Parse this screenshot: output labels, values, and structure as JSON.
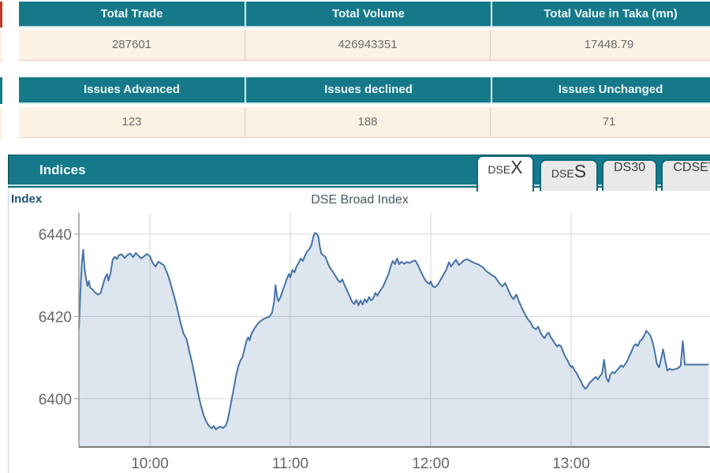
{
  "summary_table_1": {
    "headers": [
      "Total Trade",
      "Total Volume",
      "Total Value in Taka (mn)"
    ],
    "values": [
      "287601",
      "426943351",
      "17448.79"
    ]
  },
  "summary_table_2": {
    "headers": [
      "Issues Advanced",
      "Issues declined",
      "Issues Unchanged"
    ],
    "values": [
      "123",
      "188",
      "71"
    ]
  },
  "indices": {
    "title": "Indices",
    "tabs": [
      {
        "name": "DSEX",
        "small": "DSE",
        "big": "X",
        "mid": "",
        "active": true
      },
      {
        "name": "DSES",
        "small": "DSE",
        "big": "S",
        "mid": "",
        "active": false
      },
      {
        "name": "DS30",
        "small": "",
        "big": "",
        "mid": "DS30",
        "active": false
      },
      {
        "name": "CDSET",
        "small": "",
        "big": "",
        "mid": "CDSET",
        "active": false
      }
    ]
  },
  "colors": {
    "accent_teal": "#16798a",
    "header_text": "#edf8f9",
    "row_bg": "#fcf2e4",
    "row_border": "#f0cdb4",
    "red_accent": "#bf3a24",
    "chart_line": "#4572a7"
  },
  "chart_data": {
    "type": "area",
    "title": "DSE Broad Index",
    "y_axis_label": "Index",
    "grid": true,
    "legend": "none",
    "x_unit": "time of day (hours)",
    "x_range_hours": [
      9.495,
      13.99
    ],
    "y_range": [
      6388,
      6445
    ],
    "x_ticks": [
      {
        "t": 10,
        "label": "10:00"
      },
      {
        "t": 11,
        "label": "11:00"
      },
      {
        "t": 12,
        "label": "12:00"
      },
      {
        "t": 13,
        "label": "13:00"
      }
    ],
    "y_ticks": [
      {
        "v": 6400,
        "label": "6400"
      },
      {
        "v": 6420,
        "label": "6420"
      },
      {
        "v": 6440,
        "label": "6440"
      }
    ],
    "line_color": "#4572a7",
    "fill_color": "#4572a7",
    "fill_opacity": 0.18,
    "series": [
      {
        "name": "DSE Broad Index",
        "points": [
          [
            9.495,
            6417.0
          ],
          [
            9.505,
            6426.0
          ],
          [
            9.515,
            6433.0
          ],
          [
            9.525,
            6436.2
          ],
          [
            9.535,
            6431.5
          ],
          [
            9.545,
            6429.3
          ],
          [
            9.555,
            6427.4
          ],
          [
            9.565,
            6428.6
          ],
          [
            9.575,
            6427.0
          ],
          [
            9.59,
            6426.6
          ],
          [
            9.61,
            6425.8
          ],
          [
            9.63,
            6425.3
          ],
          [
            9.65,
            6425.7
          ],
          [
            9.665,
            6427.6
          ],
          [
            9.68,
            6429.3
          ],
          [
            9.695,
            6430.3
          ],
          [
            9.705,
            6428.7
          ],
          [
            9.72,
            6430.6
          ],
          [
            9.735,
            6433.8
          ],
          [
            9.75,
            6434.5
          ],
          [
            9.765,
            6433.9
          ],
          [
            9.78,
            6434.9
          ],
          [
            9.8,
            6435.1
          ],
          [
            9.82,
            6434.2
          ],
          [
            9.84,
            6434.9
          ],
          [
            9.86,
            6435.3
          ],
          [
            9.88,
            6434.4
          ],
          [
            9.9,
            6435.4
          ],
          [
            9.92,
            6434.7
          ],
          [
            9.94,
            6434.1
          ],
          [
            9.96,
            6434.7
          ],
          [
            9.98,
            6435.2
          ],
          [
            10.0,
            6434.6
          ],
          [
            10.02,
            6433.0
          ],
          [
            10.04,
            6432.1
          ],
          [
            10.06,
            6433.3
          ],
          [
            10.08,
            6432.9
          ],
          [
            10.1,
            6432.4
          ],
          [
            10.12,
            6430.8
          ],
          [
            10.14,
            6428.9
          ],
          [
            10.16,
            6426.4
          ],
          [
            10.18,
            6424.0
          ],
          [
            10.2,
            6421.2
          ],
          [
            10.22,
            6418.2
          ],
          [
            10.24,
            6415.8
          ],
          [
            10.26,
            6414.6
          ],
          [
            10.28,
            6411.7
          ],
          [
            10.3,
            6408.8
          ],
          [
            10.32,
            6405.4
          ],
          [
            10.34,
            6401.9
          ],
          [
            10.36,
            6398.8
          ],
          [
            10.38,
            6396.3
          ],
          [
            10.4,
            6394.5
          ],
          [
            10.42,
            6393.4
          ],
          [
            10.44,
            6392.8
          ],
          [
            10.455,
            6393.4
          ],
          [
            10.47,
            6392.5
          ],
          [
            10.485,
            6393.0
          ],
          [
            10.5,
            6393.2
          ],
          [
            10.52,
            6392.9
          ],
          [
            10.54,
            6393.4
          ],
          [
            10.555,
            6394.9
          ],
          [
            10.57,
            6397.6
          ],
          [
            10.585,
            6400.3
          ],
          [
            10.6,
            6403.0
          ],
          [
            10.615,
            6405.9
          ],
          [
            10.63,
            6407.9
          ],
          [
            10.645,
            6409.3
          ],
          [
            10.66,
            6410.2
          ],
          [
            10.675,
            6412.3
          ],
          [
            10.69,
            6414.3
          ],
          [
            10.7,
            6414.9
          ],
          [
            10.71,
            6414.2
          ],
          [
            10.725,
            6415.9
          ],
          [
            10.74,
            6416.8
          ],
          [
            10.755,
            6417.6
          ],
          [
            10.77,
            6418.3
          ],
          [
            10.79,
            6418.9
          ],
          [
            10.81,
            6419.4
          ],
          [
            10.83,
            6419.7
          ],
          [
            10.85,
            6419.9
          ],
          [
            10.87,
            6420.9
          ],
          [
            10.885,
            6423.6
          ],
          [
            10.895,
            6427.6
          ],
          [
            10.905,
            6424.9
          ],
          [
            10.915,
            6423.7
          ],
          [
            10.93,
            6424.7
          ],
          [
            10.945,
            6426.2
          ],
          [
            10.96,
            6427.6
          ],
          [
            10.975,
            6429.1
          ],
          [
            10.99,
            6430.3
          ],
          [
            11.0,
            6429.5
          ],
          [
            11.015,
            6431.3
          ],
          [
            11.03,
            6430.7
          ],
          [
            11.045,
            6432.2
          ],
          [
            11.06,
            6433.0
          ],
          [
            11.075,
            6434.1
          ],
          [
            11.09,
            6433.5
          ],
          [
            11.105,
            6434.8
          ],
          [
            11.12,
            6435.8
          ],
          [
            11.135,
            6436.3
          ],
          [
            11.15,
            6437.3
          ],
          [
            11.165,
            6439.5
          ],
          [
            11.175,
            6440.3
          ],
          [
            11.19,
            6440.0
          ],
          [
            11.2,
            6439.4
          ],
          [
            11.21,
            6437.0
          ],
          [
            11.22,
            6435.3
          ],
          [
            11.235,
            6434.8
          ],
          [
            11.25,
            6434.5
          ],
          [
            11.265,
            6433.1
          ],
          [
            11.28,
            6432.0
          ],
          [
            11.3,
            6431.0
          ],
          [
            11.32,
            6429.9
          ],
          [
            11.34,
            6428.8
          ],
          [
            11.355,
            6428.3
          ],
          [
            11.37,
            6429.0
          ],
          [
            11.385,
            6427.8
          ],
          [
            11.4,
            6426.6
          ],
          [
            11.42,
            6425.1
          ],
          [
            11.44,
            6423.6
          ],
          [
            11.455,
            6423.0
          ],
          [
            11.47,
            6424.0
          ],
          [
            11.485,
            6422.7
          ],
          [
            11.5,
            6423.9
          ],
          [
            11.515,
            6422.9
          ],
          [
            11.53,
            6424.2
          ],
          [
            11.545,
            6423.4
          ],
          [
            11.56,
            6424.7
          ],
          [
            11.575,
            6423.9
          ],
          [
            11.59,
            6424.3
          ],
          [
            11.605,
            6425.7
          ],
          [
            11.62,
            6425.1
          ],
          [
            11.64,
            6426.3
          ],
          [
            11.66,
            6427.2
          ],
          [
            11.68,
            6428.8
          ],
          [
            11.7,
            6430.3
          ],
          [
            11.715,
            6432.2
          ],
          [
            11.73,
            6433.5
          ],
          [
            11.745,
            6432.7
          ],
          [
            11.76,
            6434.1
          ],
          [
            11.775,
            6432.7
          ],
          [
            11.79,
            6433.3
          ],
          [
            11.81,
            6432.8
          ],
          [
            11.83,
            6433.2
          ],
          [
            11.85,
            6433.0
          ],
          [
            11.87,
            6433.4
          ],
          [
            11.89,
            6433.6
          ],
          [
            11.91,
            6432.4
          ],
          [
            11.93,
            6430.9
          ],
          [
            11.95,
            6429.5
          ],
          [
            11.97,
            6428.4
          ],
          [
            11.99,
            6427.9
          ],
          [
            12.0,
            6428.5
          ],
          [
            12.015,
            6427.3
          ],
          [
            12.03,
            6427.1
          ],
          [
            12.05,
            6427.7
          ],
          [
            12.07,
            6428.9
          ],
          [
            12.09,
            6430.1
          ],
          [
            12.11,
            6431.3
          ],
          [
            12.13,
            6433.2
          ],
          [
            12.145,
            6432.1
          ],
          [
            12.16,
            6432.9
          ],
          [
            12.18,
            6433.8
          ],
          [
            12.2,
            6432.5
          ],
          [
            12.22,
            6433.1
          ],
          [
            12.24,
            6433.7
          ],
          [
            12.26,
            6433.9
          ],
          [
            12.28,
            6433.5
          ],
          [
            12.31,
            6433.0
          ],
          [
            12.34,
            6432.6
          ],
          [
            12.37,
            6432.0
          ],
          [
            12.4,
            6430.9
          ],
          [
            12.43,
            6430.2
          ],
          [
            12.46,
            6429.5
          ],
          [
            12.49,
            6428.0
          ],
          [
            12.51,
            6427.3
          ],
          [
            12.53,
            6428.1
          ],
          [
            12.55,
            6426.6
          ],
          [
            12.57,
            6425.0
          ],
          [
            12.59,
            6424.2
          ],
          [
            12.61,
            6425.3
          ],
          [
            12.63,
            6423.5
          ],
          [
            12.65,
            6422.0
          ],
          [
            12.67,
            6420.6
          ],
          [
            12.69,
            6419.4
          ],
          [
            12.71,
            6418.6
          ],
          [
            12.73,
            6417.3
          ],
          [
            12.75,
            6416.9
          ],
          [
            12.765,
            6417.5
          ],
          [
            12.78,
            6416.2
          ],
          [
            12.795,
            6415.3
          ],
          [
            12.81,
            6414.7
          ],
          [
            12.825,
            6415.6
          ],
          [
            12.84,
            6416.1
          ],
          [
            12.855,
            6414.9
          ],
          [
            12.87,
            6414.2
          ],
          [
            12.885,
            6413.4
          ],
          [
            12.9,
            6412.7
          ],
          [
            12.915,
            6413.1
          ],
          [
            12.93,
            6412.6
          ],
          [
            12.945,
            6411.2
          ],
          [
            12.96,
            6410.1
          ],
          [
            12.975,
            6409.3
          ],
          [
            12.99,
            6408.2
          ],
          [
            13.0,
            6407.7
          ],
          [
            13.01,
            6407.9
          ],
          [
            13.025,
            6406.8
          ],
          [
            13.04,
            6406.2
          ],
          [
            13.055,
            6405.1
          ],
          [
            13.07,
            6404.2
          ],
          [
            13.085,
            6403.1
          ],
          [
            13.1,
            6402.4
          ],
          [
            13.115,
            6402.9
          ],
          [
            13.13,
            6403.8
          ],
          [
            13.145,
            6404.3
          ],
          [
            13.16,
            6404.8
          ],
          [
            13.175,
            6405.3
          ],
          [
            13.19,
            6404.7
          ],
          [
            13.205,
            6405.5
          ],
          [
            13.22,
            6406.1
          ],
          [
            13.235,
            6409.5
          ],
          [
            13.25,
            6405.2
          ],
          [
            13.265,
            6404.1
          ],
          [
            13.28,
            6405.9
          ],
          [
            13.295,
            6406.5
          ],
          [
            13.31,
            6406.2
          ],
          [
            13.325,
            6406.9
          ],
          [
            13.34,
            6407.4
          ],
          [
            13.355,
            6408.1
          ],
          [
            13.37,
            6407.7
          ],
          [
            13.385,
            6408.4
          ],
          [
            13.4,
            6409.2
          ],
          [
            13.415,
            6410.4
          ],
          [
            13.43,
            6411.5
          ],
          [
            13.445,
            6412.7
          ],
          [
            13.46,
            6413.3
          ],
          [
            13.475,
            6412.8
          ],
          [
            13.49,
            6414.0
          ],
          [
            13.505,
            6414.5
          ],
          [
            13.52,
            6415.3
          ],
          [
            13.535,
            6416.5
          ],
          [
            13.55,
            6416.0
          ],
          [
            13.565,
            6415.3
          ],
          [
            13.58,
            6413.8
          ],
          [
            13.595,
            6411.5
          ],
          [
            13.61,
            6408.5
          ],
          [
            13.625,
            6407.6
          ],
          [
            13.64,
            6409.6
          ],
          [
            13.655,
            6412.0
          ],
          [
            13.67,
            6409.2
          ],
          [
            13.685,
            6406.8
          ],
          [
            13.7,
            6407.3
          ],
          [
            13.72,
            6407.0
          ],
          [
            13.74,
            6407.2
          ],
          [
            13.76,
            6407.4
          ],
          [
            13.78,
            6408.0
          ],
          [
            13.795,
            6414.0
          ],
          [
            13.81,
            6408.3
          ],
          [
            13.85,
            6408.3
          ],
          [
            13.92,
            6408.3
          ],
          [
            13.98,
            6408.3
          ]
        ]
      }
    ]
  }
}
